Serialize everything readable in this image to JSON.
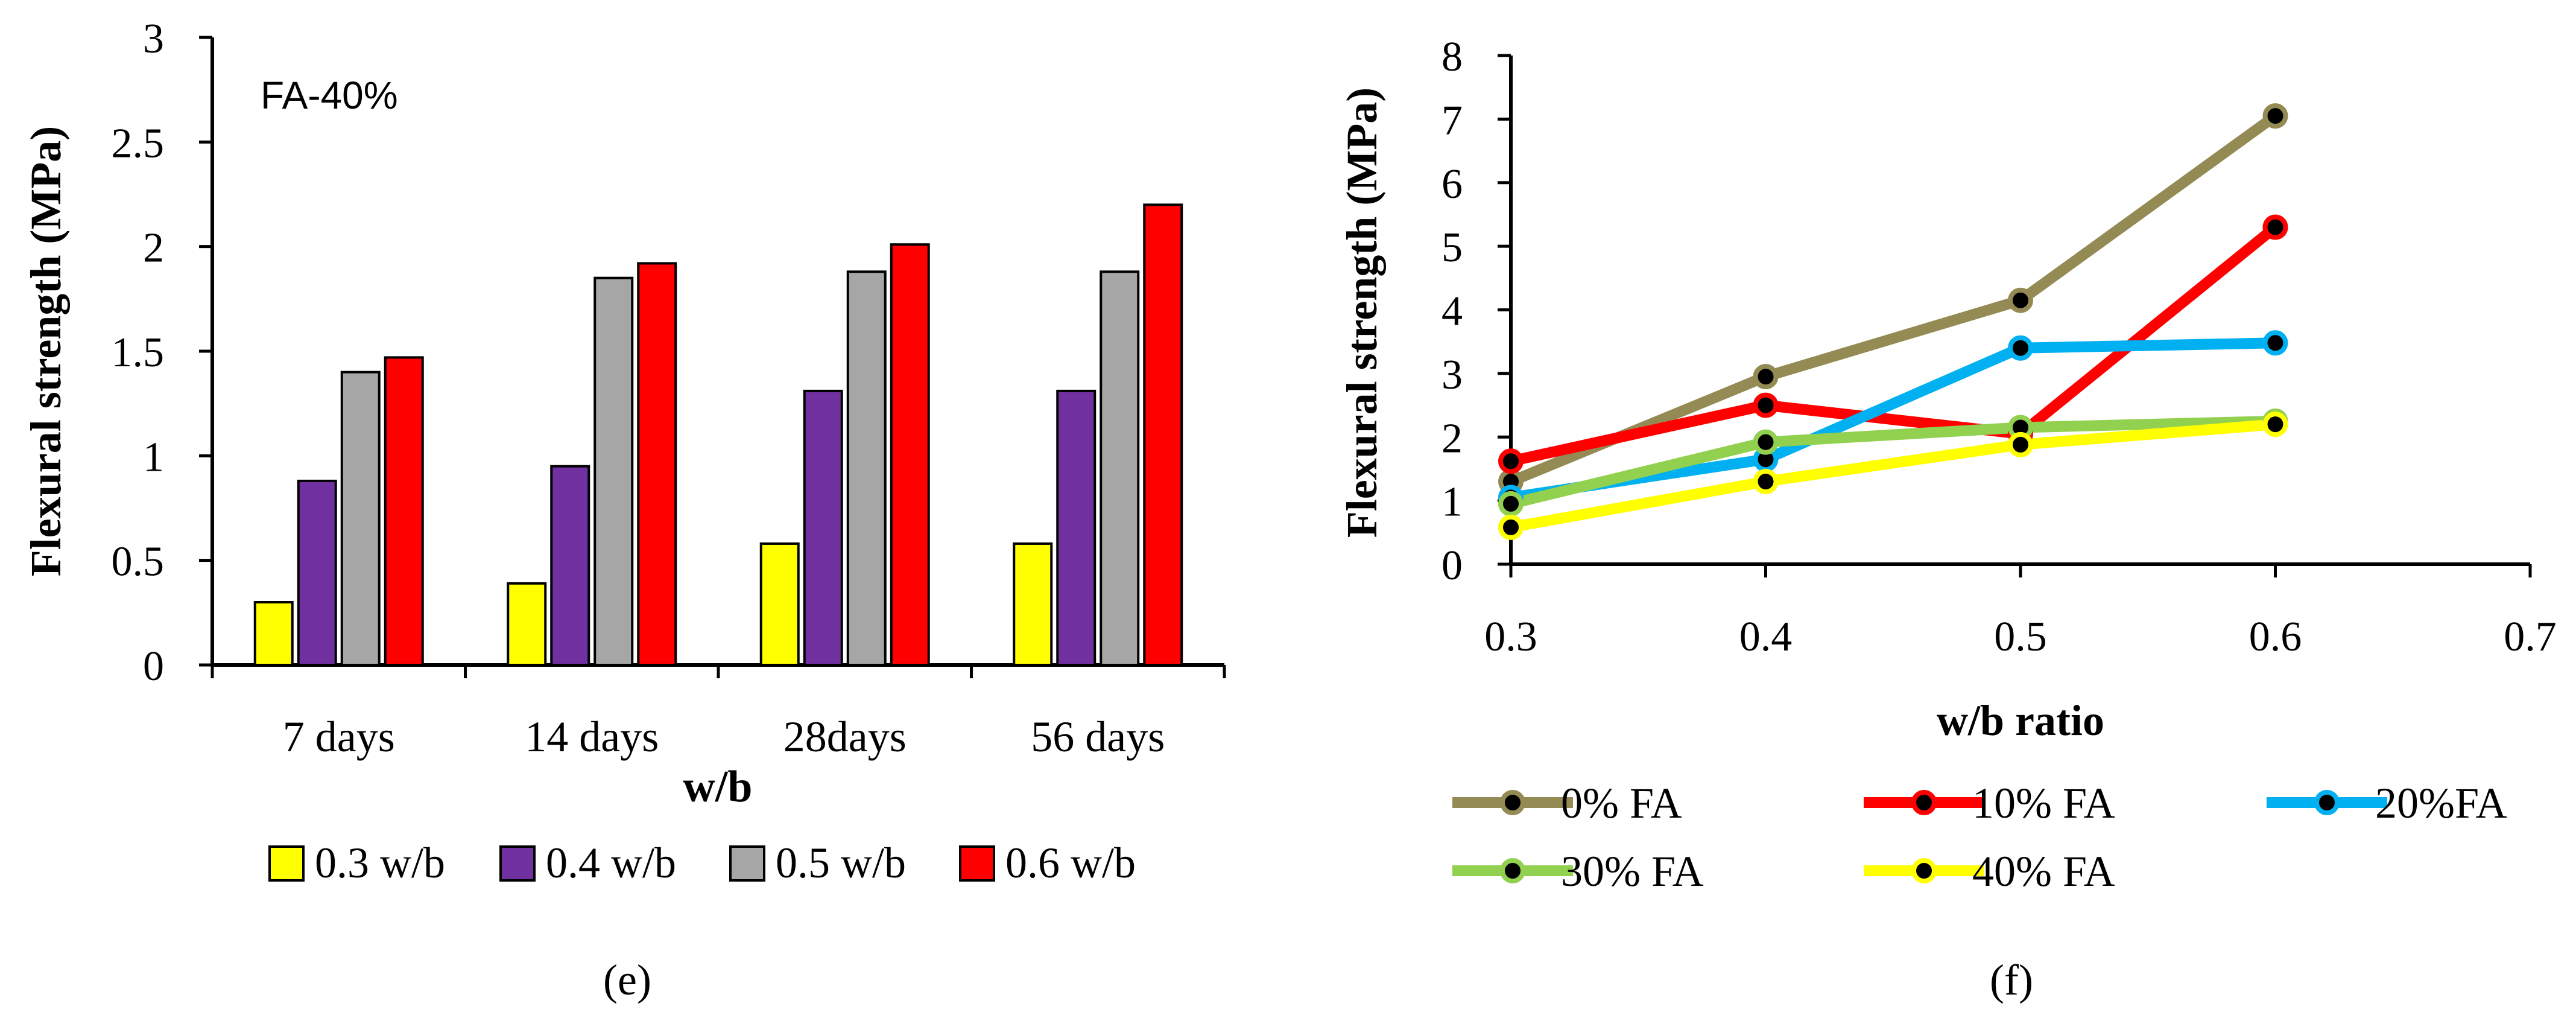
{
  "colors": {
    "axis": "#000000",
    "bar_stroke": "#000000",
    "marker_fill": "#000000"
  },
  "chart_data": [
    {
      "id": "e",
      "type": "bar",
      "panel_label": "(e)",
      "annotation": "FA-40%",
      "title": "",
      "xlabel": "w/b",
      "ylabel": "Flexural strength (MPa)",
      "ylim": [
        0,
        3
      ],
      "yticks": [
        0,
        0.5,
        1,
        1.5,
        2,
        2.5,
        3
      ],
      "ytick_labels": [
        "0",
        "0.5",
        "1",
        "1.5",
        "2",
        "2.5",
        "3"
      ],
      "grid": false,
      "legend_position": "bottom",
      "categories": [
        "7 days",
        "14 days",
        "28days",
        "56 days"
      ],
      "series": [
        {
          "name": "0.3 w/b",
          "color": "#ffff00",
          "values": [
            0.3,
            0.39,
            0.58,
            0.58
          ]
        },
        {
          "name": "0.4 w/b",
          "color": "#7030a0",
          "values": [
            0.88,
            0.95,
            1.31,
            1.31
          ]
        },
        {
          "name": "0.5 w/b",
          "color": "#a6a6a6",
          "values": [
            1.4,
            1.85,
            1.88,
            1.88
          ]
        },
        {
          "name": "0.6 w/b",
          "color": "#ff0000",
          "values": [
            1.47,
            1.92,
            2.01,
            2.2
          ]
        }
      ]
    },
    {
      "id": "f",
      "type": "line",
      "panel_label": "(f)",
      "title": "",
      "xlabel": "w/b ratio",
      "ylabel": "Flexural strength (MPa)",
      "xlim": [
        0.3,
        0.7
      ],
      "ylim": [
        0,
        8
      ],
      "xticks": [
        0.3,
        0.4,
        0.5,
        0.6,
        0.7
      ],
      "xtick_labels": [
        "0.3",
        "0.4",
        "0.5",
        "0.6",
        "0.7"
      ],
      "yticks": [
        0,
        1,
        2,
        3,
        4,
        5,
        6,
        7,
        8
      ],
      "ytick_labels": [
        "0",
        "1",
        "2",
        "3",
        "4",
        "5",
        "6",
        "7",
        "8"
      ],
      "grid": false,
      "legend_position": "bottom",
      "series": [
        {
          "name": "0% FA",
          "color": "#948a54",
          "x": [
            0.3,
            0.4,
            0.5,
            0.6
          ],
          "values": [
            1.3,
            2.95,
            4.15,
            7.05
          ]
        },
        {
          "name": "10% FA",
          "color": "#ff0000",
          "x": [
            0.3,
            0.4,
            0.5,
            0.6
          ],
          "values": [
            1.62,
            2.5,
            2.05,
            5.3
          ]
        },
        {
          "name": "20%FA",
          "color": "#00b0f0",
          "x": [
            0.3,
            0.4,
            0.5,
            0.6
          ],
          "values": [
            1.05,
            1.65,
            3.4,
            3.48
          ]
        },
        {
          "name": "30% FA",
          "color": "#92d050",
          "x": [
            0.3,
            0.4,
            0.5,
            0.6
          ],
          "values": [
            0.95,
            1.92,
            2.15,
            2.25
          ]
        },
        {
          "name": "40% FA",
          "color": "#ffff00",
          "x": [
            0.3,
            0.4,
            0.5,
            0.6
          ],
          "values": [
            0.58,
            1.3,
            1.88,
            2.2
          ]
        }
      ]
    }
  ]
}
